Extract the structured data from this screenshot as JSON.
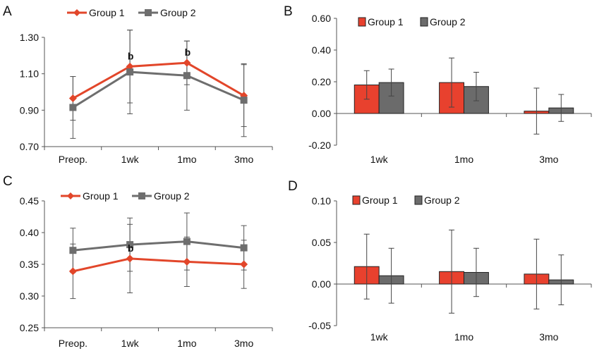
{
  "colors": {
    "group1": "#e2462a",
    "group2": "#6e6e6e",
    "bar1": "#e8412e",
    "bar2": "#6b6b6b",
    "axis": "#555555"
  },
  "chart_data": [
    {
      "panel": "A",
      "type": "line",
      "categories": [
        "Preop.",
        "1wk",
        "1mo",
        "3mo"
      ],
      "ylim": [
        0.7,
        1.3
      ],
      "yticks": [
        "0.70",
        "0.90",
        "1.10",
        "1.30"
      ],
      "legend": "top-left",
      "series": [
        {
          "name": "Group 1",
          "marker": "diamond",
          "values": [
            0.965,
            1.14,
            1.16,
            0.98
          ],
          "err": [
            0.12,
            0.2,
            0.12,
            0.17
          ]
        },
        {
          "name": "Group 2",
          "marker": "square",
          "values": [
            0.915,
            1.11,
            1.09,
            0.955
          ],
          "err": [
            0.17,
            0.23,
            0.19,
            0.2
          ]
        }
      ],
      "annotations": [
        {
          "category": "1wk",
          "text": "b"
        },
        {
          "category": "1mo",
          "text": "b"
        }
      ]
    },
    {
      "panel": "B",
      "type": "bar",
      "categories": [
        "1wk",
        "1mo",
        "3mo"
      ],
      "ylim": [
        -0.2,
        0.6
      ],
      "yticks": [
        "-0.20",
        "0.00",
        "0.20",
        "0.40",
        "0.60"
      ],
      "legend": "top",
      "series": [
        {
          "name": "Group 1",
          "values": [
            0.18,
            0.195,
            0.015
          ],
          "err": [
            0.09,
            0.155,
            0.145
          ]
        },
        {
          "name": "Group 2",
          "values": [
            0.195,
            0.17,
            0.035
          ],
          "err": [
            0.085,
            0.09,
            0.085
          ]
        }
      ]
    },
    {
      "panel": "C",
      "type": "line",
      "categories": [
        "Preop.",
        "1wk",
        "1mo",
        "3mo"
      ],
      "ylim": [
        0.25,
        0.45
      ],
      "yticks": [
        "0.25",
        "0.30",
        "0.35",
        "0.40",
        "0.45"
      ],
      "legend": "top-left",
      "series": [
        {
          "name": "Group 1",
          "marker": "diamond",
          "values": [
            0.339,
            0.359,
            0.354,
            0.35
          ],
          "err": [
            0.043,
            0.054,
            0.039,
            0.038
          ]
        },
        {
          "name": "Group 2",
          "marker": "square",
          "values": [
            0.372,
            0.381,
            0.386,
            0.376
          ],
          "err": [
            0.035,
            0.042,
            0.045,
            0.035
          ]
        }
      ],
      "annotations": [
        {
          "category": "1wk",
          "text": "b"
        }
      ]
    },
    {
      "panel": "D",
      "type": "bar",
      "categories": [
        "1wk",
        "1mo",
        "3mo"
      ],
      "ylim": [
        -0.05,
        0.1
      ],
      "yticks": [
        "-0.05",
        "0.00",
        "0.05",
        "0.10"
      ],
      "legend": "top",
      "series": [
        {
          "name": "Group 1",
          "values": [
            0.021,
            0.015,
            0.012
          ],
          "err": [
            0.039,
            0.05,
            0.042
          ]
        },
        {
          "name": "Group 2",
          "values": [
            0.01,
            0.014,
            0.005
          ],
          "err": [
            0.033,
            0.029,
            0.03
          ]
        }
      ]
    }
  ]
}
